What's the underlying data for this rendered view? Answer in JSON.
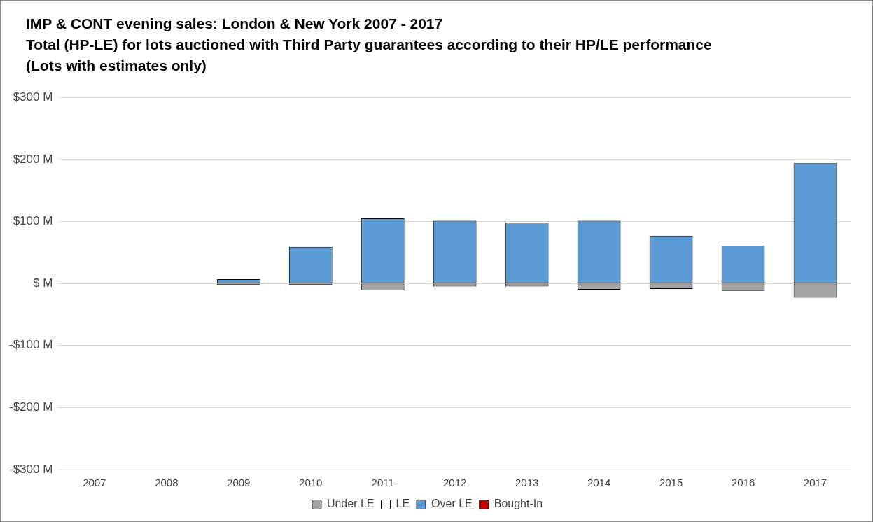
{
  "chart_data": {
    "type": "bar",
    "title": "IMP & CONT evening sales: London & New York 2007 - 2017",
    "subtitle": "Total (HP-LE) for lots auctioned with Third Party guarantees according to their HP/LE performance (Lots with estimates only)",
    "categories": [
      "2007",
      "2008",
      "2009",
      "2010",
      "2011",
      "2012",
      "2013",
      "2014",
      "2015",
      "2016",
      "2017"
    ],
    "stacked": true,
    "series": [
      {
        "name": "Under LE",
        "color": "#a5a5a5",
        "values": [
          null,
          null,
          -3,
          -3,
          -11,
          -5,
          -5,
          -10,
          -9,
          -12,
          -23
        ]
      },
      {
        "name": "LE",
        "color": "#ffffff",
        "values": [
          null,
          null,
          0,
          0,
          0,
          0,
          0,
          0,
          0,
          0,
          0
        ]
      },
      {
        "name": "Over LE",
        "color": "#5b9bd5",
        "values": [
          null,
          null,
          7,
          59,
          105,
          101,
          98,
          101,
          77,
          61,
          194
        ]
      },
      {
        "name": "Bought-In",
        "color": "#c00000",
        "values": [
          null,
          null,
          0,
          0,
          0,
          0,
          0,
          0,
          0,
          0,
          0
        ]
      }
    ],
    "ylim": [
      -300,
      300
    ],
    "yticks": [
      {
        "value": -300,
        "label": "-$300 M"
      },
      {
        "value": -200,
        "label": "-$200 M"
      },
      {
        "value": -100,
        "label": "-$100 M"
      },
      {
        "value": 0,
        "label": "$ M"
      },
      {
        "value": 100,
        "label": "$100 M"
      },
      {
        "value": 200,
        "label": "$200 M"
      },
      {
        "value": 300,
        "label": "$300 M"
      }
    ],
    "grid": "y",
    "legend": "bottom"
  }
}
